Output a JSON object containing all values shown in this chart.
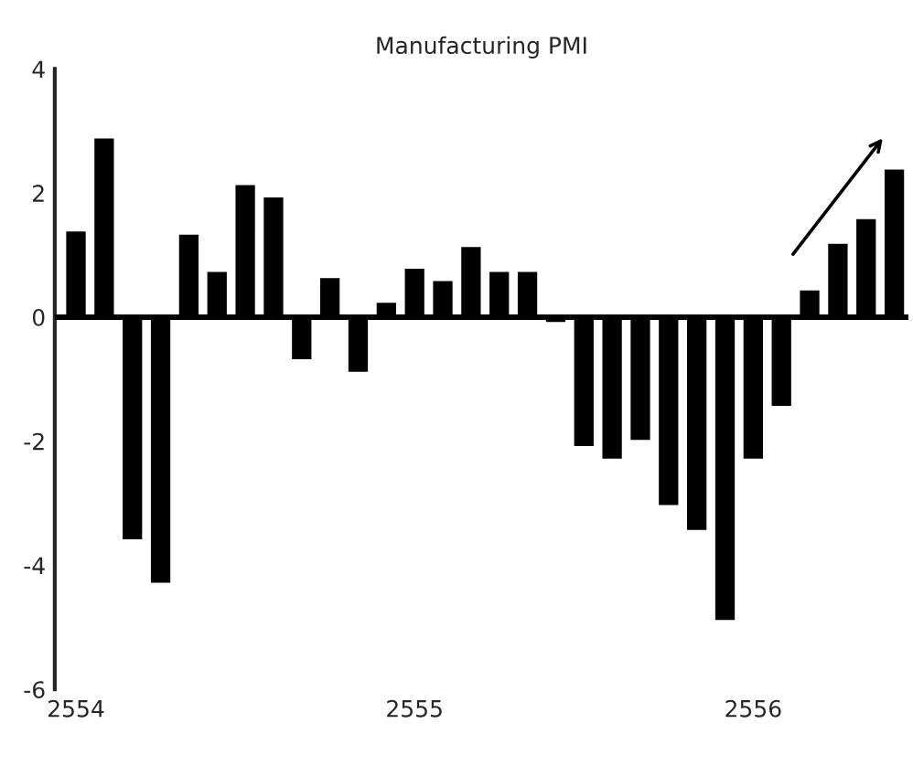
{
  "chart_data": {
    "type": "bar",
    "title": "Manufacturing PMI",
    "categories": [
      "2554",
      null,
      null,
      null,
      null,
      null,
      null,
      null,
      null,
      null,
      null,
      null,
      "2555",
      null,
      null,
      null,
      null,
      null,
      null,
      null,
      null,
      null,
      null,
      null,
      "2556",
      null,
      null,
      null,
      null,
      null
    ],
    "series": [
      {
        "color": "#000000",
        "values": [
          1.4,
          2.9,
          -3.6,
          -4.3,
          1.35,
          0.75,
          2.15,
          1.95,
          -0.7,
          0.65,
          -0.9,
          0.25,
          0.8,
          0.6,
          1.15,
          0.75,
          0.75,
          -0.1,
          -2.1,
          -2.3,
          -2.0,
          -3.05,
          -3.45,
          -4.9,
          -2.3,
          -1.45,
          0.45,
          1.2,
          1.6,
          2.4
        ]
      }
    ],
    "ylim": [
      -6,
      4
    ],
    "yticks": [
      -6,
      -4,
      -2,
      0,
      2,
      4
    ],
    "ref_lines": [
      {
        "axis": "y",
        "value": 0,
        "color": "#000000"
      }
    ],
    "grid": false,
    "legend": false
  }
}
